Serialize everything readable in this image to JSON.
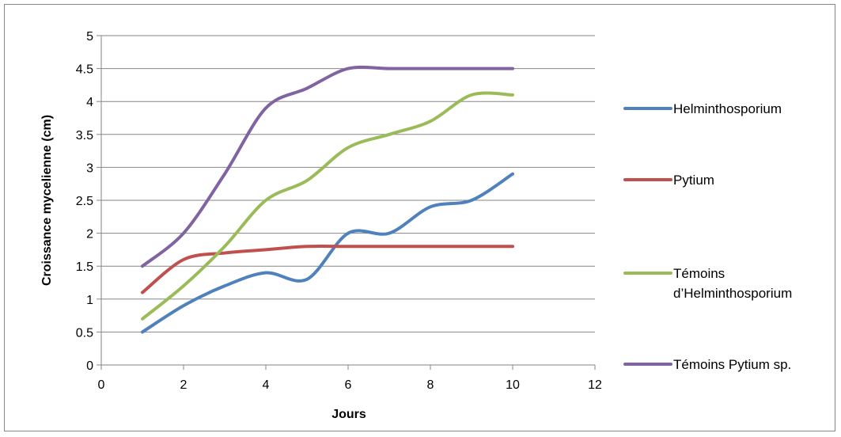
{
  "chart_data": {
    "type": "line",
    "xlabel": "Jours",
    "ylabel": "Croissance mycelienne (cm)",
    "xlim": [
      0,
      12
    ],
    "ylim": [
      0,
      5
    ],
    "xticks": [
      0,
      2,
      4,
      6,
      8,
      10,
      12
    ],
    "yticks": [
      0,
      0.5,
      1,
      1.5,
      2,
      2.5,
      3,
      3.5,
      4,
      4.5,
      5
    ],
    "grid": "horizontal",
    "legend_position": "right",
    "x": [
      1,
      2,
      3,
      4,
      5,
      6,
      7,
      8,
      9,
      10
    ],
    "series": [
      {
        "name": "Helminthosporium",
        "color": "#4F81BD",
        "values": [
          0.5,
          0.9,
          1.2,
          1.4,
          1.3,
          2.0,
          2.0,
          2.4,
          2.5,
          2.9
        ]
      },
      {
        "name": "Pytium",
        "color": "#C0504D",
        "values": [
          1.1,
          1.6,
          1.7,
          1.75,
          1.8,
          1.8,
          1.8,
          1.8,
          1.8,
          1.8
        ]
      },
      {
        "name": "Témoins d’Helminthosporium",
        "legend_lines": [
          "Témoins",
          "d’Helminthosporium"
        ],
        "color": "#9BBB59",
        "values": [
          0.7,
          1.2,
          1.8,
          2.5,
          2.8,
          3.3,
          3.5,
          3.7,
          4.1,
          4.1
        ]
      },
      {
        "name": "Témoins Pytium sp.",
        "color": "#8064A2",
        "values": [
          1.5,
          2.0,
          2.9,
          3.9,
          4.2,
          4.5,
          4.5,
          4.5,
          4.5,
          4.5
        ]
      }
    ]
  }
}
